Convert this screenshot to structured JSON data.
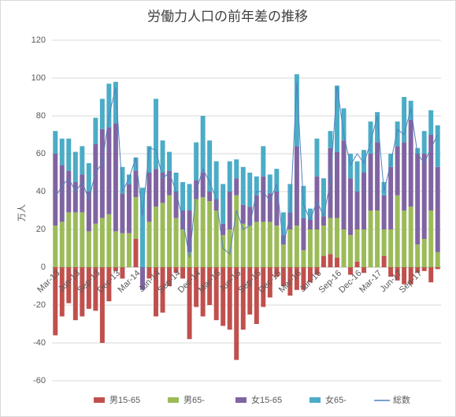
{
  "chart_data": {
    "type": "bar",
    "title": "労働力人口の前年差の推移",
    "y_label": "万人",
    "categories": [
      "Mar-13",
      null,
      null,
      "Jun-13",
      null,
      null,
      "Sep-13",
      null,
      null,
      "Dec-13",
      null,
      null,
      "Mar-14",
      null,
      null,
      "Jun-14",
      null,
      null,
      "Sep-14",
      null,
      null,
      "Dec-14",
      null,
      null,
      "Mar-15",
      null,
      null,
      "Jun-15",
      null,
      null,
      "Sep-15",
      null,
      null,
      "Dec-15",
      null,
      null,
      "Mar-16",
      null,
      null,
      "Jun-16",
      null,
      null,
      "Sep-16",
      null,
      null,
      "Dec-16",
      null,
      null,
      "Mar-17",
      null,
      null,
      "Jun-17",
      null,
      null,
      "Sep-17",
      null,
      null,
      null
    ],
    "series": [
      {
        "name": "男15-65",
        "type": "bar",
        "color": "#c0504d",
        "values": [
          -36,
          -26,
          -19,
          -28,
          -26,
          -22,
          -23,
          -40,
          -18,
          -2,
          -6,
          0,
          15,
          0,
          -6,
          -26,
          -24,
          -10,
          -3,
          -6,
          -38,
          -21,
          -26,
          -20,
          -28,
          -31,
          -33,
          -49,
          -33,
          -25,
          -30,
          -21,
          -16,
          -5,
          -10,
          -15,
          -12,
          -12,
          -8,
          -4,
          6,
          7,
          5,
          0,
          -4,
          3,
          -3,
          0,
          0,
          6,
          -5,
          -7,
          -9,
          -9,
          -3,
          -2,
          -8,
          -1
        ]
      },
      {
        "name": "男65-",
        "type": "bar",
        "color": "#9bbb59",
        "values": [
          22,
          24,
          29,
          29,
          29,
          19,
          23,
          26,
          28,
          19,
          18,
          18,
          22,
          0,
          24,
          32,
          34,
          38,
          26,
          20,
          8,
          36,
          37,
          35,
          30,
          17,
          20,
          38,
          23,
          22,
          24,
          24,
          24,
          22,
          12,
          20,
          22,
          9,
          20,
          20,
          16,
          19,
          21,
          20,
          17,
          17,
          20,
          30,
          30,
          14,
          20,
          38,
          30,
          32,
          12,
          15,
          30,
          8
        ]
      },
      {
        "name": "女15-65",
        "type": "bar",
        "color": "#8064a2",
        "values": [
          38,
          30,
          22,
          16,
          20,
          21,
          42,
          47,
          46,
          57,
          21,
          26,
          14,
          -12,
          26,
          20,
          16,
          13,
          14,
          10,
          22,
          10,
          13,
          5,
          6,
          6,
          20,
          9,
          10,
          10,
          14,
          24,
          15,
          18,
          5,
          9,
          42,
          17,
          5,
          28,
          5,
          37,
          35,
          47,
          30,
          20,
          30,
          30,
          36,
          18,
          33,
          26,
          36,
          46,
          48,
          45,
          40,
          45
        ]
      },
      {
        "name": "女65-",
        "type": "bar",
        "color": "#4bacc6",
        "values": [
          12,
          14,
          17,
          16,
          15,
          15,
          14,
          16,
          23,
          22,
          14,
          5,
          7,
          42,
          14,
          37,
          17,
          10,
          10,
          15,
          14,
          20,
          30,
          27,
          20,
          21,
          16,
          10,
          20,
          18,
          10,
          16,
          10,
          12,
          12,
          15,
          38,
          17,
          6,
          20,
          20,
          9,
          35,
          17,
          13,
          16,
          12,
          17,
          16,
          7,
          7,
          13,
          24,
          10,
          3,
          12,
          13,
          22
        ]
      },
      {
        "name": "総数",
        "type": "line",
        "color": "#4f81bd",
        "values": [
          37,
          43,
          47,
          40,
          45,
          36,
          50,
          55,
          80,
          95,
          40,
          47,
          58,
          27,
          63,
          62,
          47,
          50,
          40,
          25,
          5,
          40,
          52,
          45,
          36,
          10,
          7,
          30,
          20,
          22,
          40,
          40,
          35,
          44,
          12,
          27,
          98,
          33,
          25,
          35,
          27,
          45,
          96,
          70,
          54,
          60,
          55,
          66,
          80,
          40,
          55,
          73,
          70,
          84,
          60,
          55,
          63,
          70
        ]
      }
    ],
    "ylim": [
      -60,
      120
    ],
    "yticks": [
      -60,
      -40,
      -20,
      0,
      20,
      40,
      60,
      80,
      100,
      120
    ],
    "grid": true,
    "legend": "bottom"
  }
}
